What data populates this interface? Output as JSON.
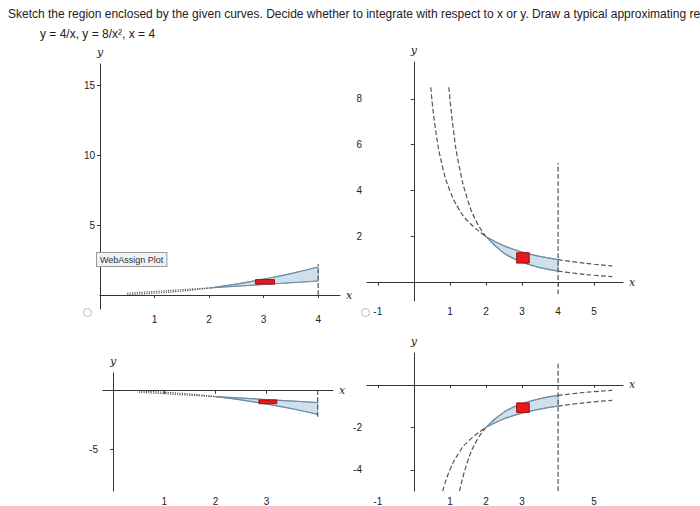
{
  "question": "Sketch the region enclosed by the given curves. Decide whether to integrate with respect to x or y. Draw a typical approximating rectangle.",
  "equations": "y = 4/x, y = 8/x², x = 4",
  "chart_data": [
    {
      "type": "line",
      "xlabel": "x",
      "ylabel": "y",
      "xlim": [
        0,
        4.4
      ],
      "ylim": [
        -1,
        16.5
      ],
      "xticks": [
        1,
        2,
        3,
        4
      ],
      "yticks": [
        5,
        10,
        15
      ],
      "grid": false,
      "annotations": [
        "WebAssign Plot"
      ],
      "series": [
        {
          "type": "polygon",
          "color": "#cfe0ec",
          "x": [
            2,
            2.5,
            3,
            3.5,
            4,
            4,
            3,
            2
          ],
          "values": [
            0.5,
            0.78,
            1.13,
            1.53,
            2,
            1,
            0.75,
            0.5
          ]
        },
        {
          "type": "line",
          "line_style": "dotted",
          "color": "#555555",
          "x": [
            0.5,
            1,
            1.5,
            2
          ],
          "values": [
            0.03,
            0.13,
            0.28,
            0.5
          ]
        },
        {
          "type": "line",
          "line_style": "dotted",
          "color": "#555555",
          "x": [
            0.5,
            1,
            1.5,
            2
          ],
          "values": [
            0.13,
            0.25,
            0.38,
            0.5
          ]
        },
        {
          "type": "line",
          "line_style": "solid",
          "color": "#6d8ea8",
          "x": [
            2,
            2.5,
            3,
            3.5,
            4
          ],
          "values": [
            0.5,
            0.78,
            1.13,
            1.53,
            2
          ]
        },
        {
          "type": "line",
          "line_style": "solid",
          "color": "#6d8ea8",
          "x": [
            2,
            3,
            4
          ],
          "values": [
            0.5,
            0.75,
            1
          ]
        },
        {
          "type": "line",
          "line_style": "dashed",
          "color": "#555555",
          "x": [
            4,
            4
          ],
          "values": [
            0,
            2.2
          ]
        },
        {
          "type": "rect",
          "color": "#e41a1c",
          "x": [
            2.85,
            3.2
          ],
          "values": [
            0.78,
            1.1
          ]
        }
      ]
    },
    {
      "type": "line",
      "xlabel": "x",
      "ylabel": "y",
      "xlim": [
        -1.3,
        5.8
      ],
      "ylim": [
        -0.8,
        9.6
      ],
      "xticks": [
        -1,
        1,
        2,
        3,
        4,
        5
      ],
      "yticks": [
        2,
        4,
        6,
        8
      ],
      "grid": false,
      "series": [
        {
          "type": "polygon",
          "color": "#cfe0ec",
          "x": [
            2,
            2.5,
            3,
            3.5,
            4,
            4,
            3.5,
            3,
            2.5,
            2
          ],
          "values": [
            2,
            1.6,
            1.33,
            1.14,
            1,
            0.5,
            0.65,
            0.89,
            1.28,
            2
          ]
        },
        {
          "type": "line",
          "line_style": "dashed",
          "color": "#555555",
          "x": [
            0.47,
            0.6,
            0.8,
            1,
            1.25,
            1.5,
            2
          ],
          "values": [
            8.5,
            6.67,
            5,
            4,
            3.2,
            2.67,
            2
          ]
        },
        {
          "type": "line",
          "line_style": "dashed",
          "color": "#555555",
          "x": [
            0.97,
            1.1,
            1.25,
            1.5,
            1.75,
            2
          ],
          "values": [
            8.5,
            6.61,
            5.12,
            3.56,
            2.61,
            2
          ]
        },
        {
          "type": "line",
          "line_style": "solid",
          "color": "#6d8ea8",
          "x": [
            2,
            2.5,
            3,
            3.5,
            4
          ],
          "values": [
            2,
            1.6,
            1.33,
            1.14,
            1
          ]
        },
        {
          "type": "line",
          "line_style": "solid",
          "color": "#6d8ea8",
          "x": [
            2,
            2.5,
            3,
            3.5,
            4
          ],
          "values": [
            2,
            1.28,
            0.89,
            0.65,
            0.5
          ]
        },
        {
          "type": "line",
          "line_style": "dashed",
          "color": "#555555",
          "x": [
            4,
            4.5,
            5,
            5.5
          ],
          "values": [
            1,
            0.89,
            0.8,
            0.73
          ]
        },
        {
          "type": "line",
          "line_style": "dashed",
          "color": "#555555",
          "x": [
            4,
            4.5,
            5,
            5.5
          ],
          "values": [
            0.5,
            0.4,
            0.32,
            0.26
          ]
        },
        {
          "type": "line",
          "line_style": "dashed",
          "color": "#555555",
          "x": [
            4,
            4
          ],
          "values": [
            -0.5,
            5.2
          ]
        },
        {
          "type": "rect",
          "color": "#e41a1c",
          "x": [
            2.85,
            3.2
          ],
          "values": [
            0.85,
            1.3
          ]
        }
      ]
    },
    {
      "type": "line",
      "xlabel": "x",
      "ylabel": "y",
      "xlim": [
        -0.2,
        4.3
      ],
      "ylim": [
        -8.5,
        1.5
      ],
      "xticks": [
        1,
        2,
        3
      ],
      "yticks": [
        -5
      ],
      "grid": false,
      "series": [
        {
          "type": "polygon",
          "color": "#cfe0ec",
          "x": [
            2,
            2.5,
            3,
            3.5,
            4,
            4,
            3,
            2
          ],
          "values": [
            -0.5,
            -0.78,
            -1.13,
            -1.53,
            -2,
            -1,
            -0.75,
            -0.5
          ]
        },
        {
          "type": "line",
          "line_style": "dotted",
          "color": "#555555",
          "x": [
            0.5,
            1,
            1.5,
            2
          ],
          "values": [
            -0.03,
            -0.13,
            -0.28,
            -0.5
          ]
        },
        {
          "type": "line",
          "line_style": "dotted",
          "color": "#555555",
          "x": [
            0.5,
            1,
            1.5,
            2
          ],
          "values": [
            -0.13,
            -0.25,
            -0.38,
            -0.5
          ]
        },
        {
          "type": "line",
          "line_style": "solid",
          "color": "#6d8ea8",
          "x": [
            2,
            2.5,
            3,
            3.5,
            4
          ],
          "values": [
            -0.5,
            -0.78,
            -1.13,
            -1.53,
            -2
          ]
        },
        {
          "type": "line",
          "line_style": "solid",
          "color": "#6d8ea8",
          "x": [
            2,
            3,
            4
          ],
          "values": [
            -0.5,
            -0.75,
            -1
          ]
        },
        {
          "type": "line",
          "line_style": "dashed",
          "color": "#555555",
          "x": [
            4,
            4
          ],
          "values": [
            -2.2,
            0
          ]
        },
        {
          "type": "rect",
          "color": "#e41a1c",
          "x": [
            2.85,
            3.2
          ],
          "values": [
            -1.1,
            -0.78
          ]
        }
      ]
    },
    {
      "type": "line",
      "xlabel": "x",
      "ylabel": "y",
      "xlim": [
        -1.3,
        5.8
      ],
      "ylim": [
        -5,
        1.5
      ],
      "xticks": [
        -1,
        1,
        2,
        3,
        5
      ],
      "yticks": [
        -4,
        -2
      ],
      "grid": false,
      "series": [
        {
          "type": "polygon",
          "color": "#cfe0ec",
          "x": [
            2,
            2.5,
            3,
            3.5,
            4,
            4,
            3.5,
            3,
            2.5,
            2
          ],
          "values": [
            -2,
            -1.6,
            -1.33,
            -1.14,
            -1,
            -0.5,
            -0.65,
            -0.89,
            -1.28,
            -2
          ]
        },
        {
          "type": "line",
          "line_style": "dashed",
          "color": "#555555",
          "x": [
            0.8,
            1,
            1.25,
            1.5,
            2
          ],
          "values": [
            -5,
            -4,
            -3.2,
            -2.67,
            -2
          ]
        },
        {
          "type": "line",
          "line_style": "dashed",
          "color": "#555555",
          "x": [
            1.265,
            1.5,
            1.75,
            2
          ],
          "values": [
            -5,
            -3.56,
            -2.61,
            -2
          ]
        },
        {
          "type": "line",
          "line_style": "solid",
          "color": "#6d8ea8",
          "x": [
            2,
            2.5,
            3,
            3.5,
            4
          ],
          "values": [
            -2,
            -1.6,
            -1.33,
            -1.14,
            -1
          ]
        },
        {
          "type": "line",
          "line_style": "solid",
          "color": "#6d8ea8",
          "x": [
            2,
            2.5,
            3,
            3.5,
            4
          ],
          "values": [
            -2,
            -1.28,
            -0.89,
            -0.65,
            -0.5
          ]
        },
        {
          "type": "line",
          "line_style": "dashed",
          "color": "#555555",
          "x": [
            4,
            4.5,
            5,
            5.5
          ],
          "values": [
            -1,
            -0.89,
            -0.8,
            -0.73
          ]
        },
        {
          "type": "line",
          "line_style": "dashed",
          "color": "#555555",
          "x": [
            4,
            4.5,
            5,
            5.5
          ],
          "values": [
            -0.5,
            -0.4,
            -0.32,
            -0.26
          ]
        },
        {
          "type": "line",
          "line_style": "dashed",
          "color": "#555555",
          "x": [
            4,
            4
          ],
          "values": [
            -5,
            1
          ]
        },
        {
          "type": "rect",
          "color": "#e41a1c",
          "x": [
            2.85,
            3.2
          ],
          "values": [
            -1.3,
            -0.85
          ]
        }
      ]
    }
  ]
}
